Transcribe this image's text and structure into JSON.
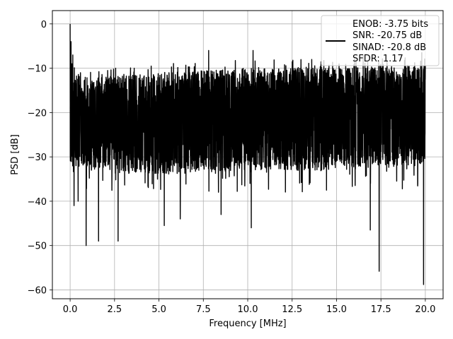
{
  "chart_data": {
    "type": "line",
    "title": "",
    "xlabel": "Frequency [MHz]",
    "ylabel": "PSD [dB]",
    "xlim": [
      -1.0,
      21.0
    ],
    "ylim": [
      -62.0,
      3.0
    ],
    "xticks": [
      0.0,
      2.5,
      5.0,
      7.5,
      10.0,
      12.5,
      15.0,
      17.5,
      20.0
    ],
    "xtick_labels": [
      "0.0",
      "2.5",
      "5.0",
      "7.5",
      "10.0",
      "12.5",
      "15.0",
      "17.5",
      "20.0"
    ],
    "yticks": [
      0,
      -10,
      -20,
      -30,
      -40,
      -50,
      -60
    ],
    "ytick_labels": [
      "0",
      "−10",
      "−20",
      "−30",
      "−40",
      "−50",
      "−60"
    ],
    "grid": true,
    "legend_position": "top-right",
    "legend": {
      "line_color": "#000000",
      "lines": [
        "ENOB: -3.75 bits",
        "SNR: -20.75 dB",
        "SINAD: -20.8 dB",
        "SFDR: 1.17"
      ]
    },
    "series": [
      {
        "color": "#000000",
        "x_start": 0.0,
        "x_end": 20.0,
        "peaks": [
          [
            0.0,
            0.0
          ],
          [
            0.05,
            -4.0
          ],
          [
            0.1,
            -9.0
          ],
          [
            0.15,
            -7.0
          ],
          [
            0.3,
            -13.0
          ],
          [
            7.8,
            -6.0
          ],
          [
            10.3,
            -6.0
          ],
          [
            16.5,
            -7.0
          ],
          [
            19.8,
            -6.5
          ],
          [
            20.0,
            -9.5
          ]
        ],
        "dips": [
          [
            0.22,
            -41.0
          ],
          [
            0.45,
            -40.0
          ],
          [
            0.9,
            -50.0
          ],
          [
            1.6,
            -49.0
          ],
          [
            2.7,
            -49.0
          ],
          [
            5.3,
            -45.5
          ],
          [
            6.2,
            -44.0
          ],
          [
            8.5,
            -43.0
          ],
          [
            10.2,
            -46.0
          ],
          [
            16.9,
            -46.5
          ],
          [
            17.4,
            -55.8
          ],
          [
            19.9,
            -58.8
          ]
        ],
        "upper_envelope": [
          [
            0.0,
            -11.0
          ],
          [
            2.0,
            -12.0
          ],
          [
            5.0,
            -11.0
          ],
          [
            10.0,
            -10.0
          ],
          [
            15.0,
            -10.0
          ],
          [
            20.0,
            -9.5
          ]
        ],
        "lower_envelope": [
          [
            0.0,
            -32.0
          ],
          [
            2.5,
            -33.0
          ],
          [
            5.0,
            -34.0
          ],
          [
            10.0,
            -33.0
          ],
          [
            15.0,
            -33.0
          ],
          [
            20.0,
            -32.0
          ]
        ],
        "median_level": [
          [
            0.0,
            -22.0
          ],
          [
            5.0,
            -21.0
          ],
          [
            10.0,
            -20.0
          ],
          [
            15.0,
            -19.5
          ],
          [
            20.0,
            -19.0
          ]
        ]
      }
    ]
  }
}
